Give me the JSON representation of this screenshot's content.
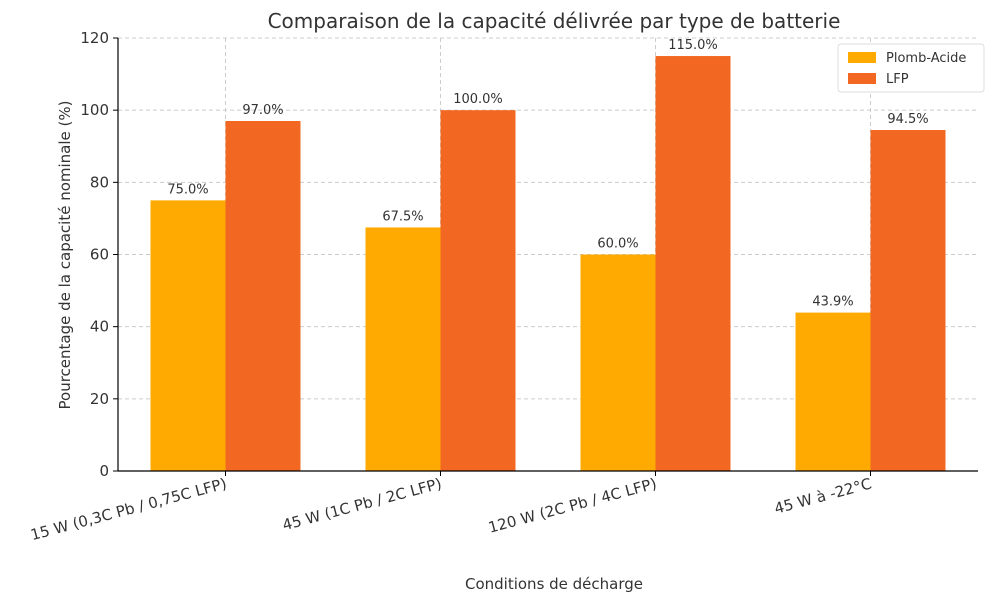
{
  "chart_data": {
    "type": "bar",
    "title": "Comparaison de la capacité délivrée par type de batterie",
    "xlabel": "Conditions de décharge",
    "ylabel": "Pourcentage de la capacité nominale (%)",
    "categories": [
      "15 W (0,3C Pb / 0,75C LFP)",
      "45 W (1C Pb / 2C LFP)",
      "120 W (2C Pb / 4C LFP)",
      "45 W à -22°C"
    ],
    "series": [
      {
        "name": "Plomb-Acide",
        "color": "#FFAA00",
        "values": [
          75.0,
          67.5,
          60.0,
          43.9
        ],
        "labels": [
          "75.0%",
          "67.5%",
          "60.0%",
          "43.9%"
        ]
      },
      {
        "name": "LFP",
        "color": "#F26722",
        "values": [
          97.0,
          100.0,
          115.0,
          94.5
        ],
        "labels": [
          "97.0%",
          "100.0%",
          "115.0%",
          "94.5%"
        ]
      }
    ],
    "ylim": [
      0,
      120
    ],
    "yticks": [
      "0",
      "20",
      "40",
      "60",
      "80",
      "100",
      "120"
    ],
    "grid": true,
    "legend": "top-right"
  }
}
